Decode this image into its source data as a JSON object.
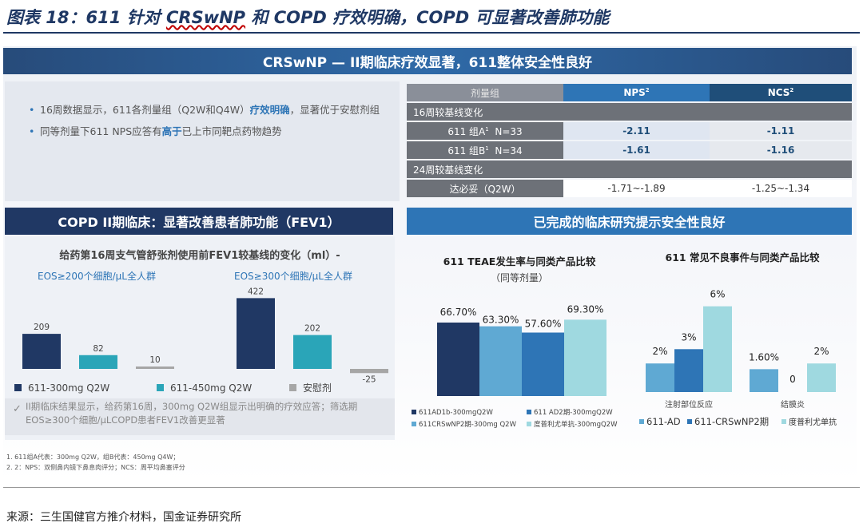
{
  "figure": {
    "title_prefix": "图表 18：611 针对 ",
    "title_underlined": "CRSwNP",
    "title_suffix": " 和 COPD 疗效明确，COPD 可显著改善肺功能",
    "source": "来源：三生国健官方推介材料，国金证券研究所"
  },
  "crswnp": {
    "banner": "CRSwNP — II期临床疗效显著，611整体安全性良好",
    "bullets": [
      {
        "pre": "16周数据显示，611各剂量组（Q2W和Q4W）",
        "hl": "疗效明确",
        "post": "，显著优于安慰剂组"
      },
      {
        "pre": "同等剂量下611 NPS应答有",
        "hl": "高于",
        "post": "已上市同靶点药物趋势"
      }
    ],
    "table": {
      "header": {
        "group": "剂量组",
        "nps": "NPS",
        "nps_sup": "2",
        "ncs": "NCS",
        "ncs_sup": "2"
      },
      "sec16": "16周较基线变化",
      "rows16": [
        {
          "label": "611 组A",
          "sup": "1",
          "n": "N=33",
          "nps": "-2.11",
          "ncs": "-1.11"
        },
        {
          "label": "611 组B",
          "sup": "1",
          "n": "N=34",
          "nps": "-1.61",
          "ncs": "-1.16"
        }
      ],
      "sec24": "24周较基线变化",
      "row24": {
        "label": "达必妥（Q2W）",
        "nps": "-1.71~-1.89",
        "ncs": "-1.25~-1.34"
      }
    }
  },
  "copd": {
    "banner": "COPD II期临床：显著改善患者肺功能（FEV1）",
    "note": "II期临床结果显示，给药第16周，300mg Q2W组显示出明确的疗效应答；筛选期EOS≥300个细胞/μLCOPD患者FEV1改善更显著"
  },
  "safety": {
    "banner": "已完成的临床研究提示安全性良好"
  },
  "footnotes": [
    "1.    611组A代表：300mg Q2W，组B代表：450mg Q4W；",
    "2.    2：NPS：双侧鼻内镜下鼻息肉评分；NCS：周平均鼻塞评分"
  ],
  "colors": {
    "dark": "#203864",
    "teal": "#2aa5b8",
    "gray": "#a6a6a6",
    "mid": "#2e75b6",
    "light": "#9fd9e0",
    "sky": "#5fa9d3"
  },
  "chart_data": [
    {
      "type": "bar",
      "title": "给药第16周支气管舒张剂使用前FEV1较基线的变化（ml）-",
      "groups": [
        "EOS≥200个细胞/μL全人群",
        "EOS≥300个细胞/μL全人群"
      ],
      "series": [
        {
          "name": "611-300mg Q2W",
          "values": [
            209,
            422
          ]
        },
        {
          "name": "611-450mg Q2W",
          "values": [
            82,
            202
          ]
        },
        {
          "name": "安慰剂",
          "values": [
            10,
            -25
          ]
        }
      ],
      "value_labels": [
        [
          "209",
          "82",
          "10"
        ],
        [
          "422",
          "202",
          "-25"
        ]
      ],
      "ylim": [
        -40,
        440
      ]
    },
    {
      "type": "bar",
      "title": "611 TEAE发生率与同类产品比较",
      "subtitle": "（同等剂量）",
      "series": [
        {
          "name": "611AD1b-300mgQ2W",
          "value": 66.7,
          "label": "66.70%"
        },
        {
          "name": "611CRSwNP2期-300mg Q2W",
          "value": 63.3,
          "label": "63.30%"
        },
        {
          "name": "611 AD2期-300mgQ2W",
          "value": 57.6,
          "label": "57.60%"
        },
        {
          "name": "度普利尤单抗-300mgQ2W",
          "value": 69.3,
          "label": "69.30%"
        }
      ],
      "ylim": [
        0,
        100
      ]
    },
    {
      "type": "bar",
      "title": "611 常见不良事件与同类产品比较",
      "categories": [
        "注射部位反应",
        "结膜炎"
      ],
      "series": [
        {
          "name": "611-AD",
          "values": [
            2,
            1.6
          ],
          "labels": [
            "2%",
            "1.60%"
          ]
        },
        {
          "name": "611-CRSwNP2期",
          "values": [
            3,
            0
          ],
          "labels": [
            "3%",
            "0"
          ]
        },
        {
          "name": "度普利尤单抗",
          "values": [
            6,
            2
          ],
          "labels": [
            "6%",
            "2%"
          ]
        }
      ],
      "ylim": [
        0,
        7
      ]
    }
  ]
}
